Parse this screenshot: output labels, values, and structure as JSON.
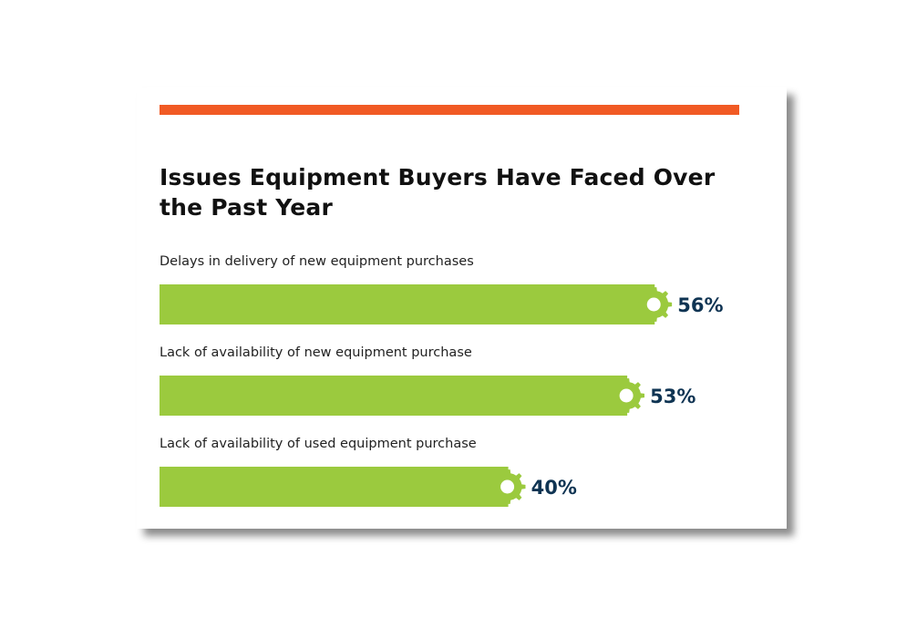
{
  "chart_data": {
    "type": "bar",
    "orientation": "horizontal",
    "title": "Issues Equipment Buyers Have Faced Over the Past Year",
    "categories": [
      "Delays in delivery of new equipment purchases",
      "Lack of availability of new equipment purchase",
      "Lack of availability of used equipment purchase"
    ],
    "values": [
      56,
      53,
      40
    ],
    "value_labels": [
      "56%",
      "53%",
      "40%"
    ],
    "unit": "%",
    "xlabel": "",
    "ylabel": "",
    "xlim": [
      0,
      56
    ],
    "grid": false,
    "legend": "none"
  },
  "colors": {
    "accent": "#f15a24",
    "bar": "#9bca3e",
    "value_text": "#0f3453",
    "title_text": "#111111"
  },
  "icons": {
    "bar_end": "gear-icon"
  }
}
